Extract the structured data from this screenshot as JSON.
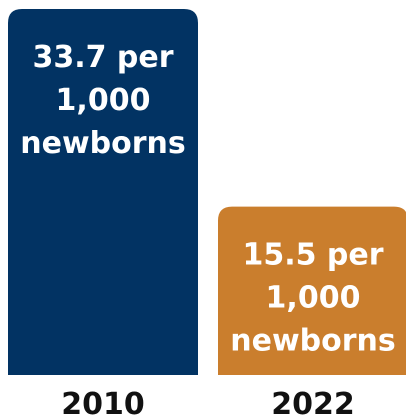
{
  "chart_data": {
    "type": "bar",
    "categories": [
      "2010",
      "2022"
    ],
    "values": [
      33.7,
      15.5
    ],
    "unit": "per 1,000 newborns",
    "data_labels": [
      [
        "33.7 per",
        "1,000",
        "newborns"
      ],
      [
        "15.5 per",
        "1,000",
        "newborns"
      ]
    ],
    "colors": [
      "#023363",
      "#CA7E2D"
    ],
    "title": "",
    "xlabel": "",
    "ylabel": "",
    "ylim": [
      0,
      33.7
    ],
    "grid": false,
    "legend": "none"
  }
}
